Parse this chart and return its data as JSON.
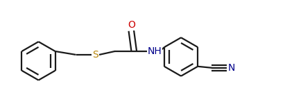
{
  "background_color": "#ffffff",
  "line_color": "#1a1a1a",
  "s_color": "#b8860b",
  "n_color": "#00008b",
  "o_color": "#cc0000",
  "line_width": 1.6,
  "figsize": [
    4.11,
    1.5
  ],
  "dpi": 100,
  "xlim": [
    0,
    4.11
  ],
  "ylim": [
    0,
    1.5
  ]
}
